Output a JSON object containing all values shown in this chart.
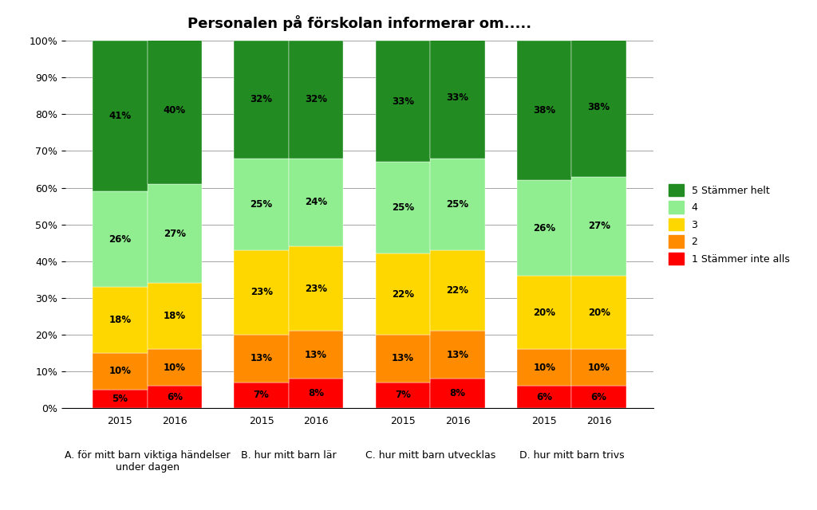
{
  "title": "Personalen på förskolan informerar om.....",
  "categories": [
    [
      "2015",
      "2016"
    ],
    [
      "2015",
      "2016"
    ],
    [
      "2015",
      "2016"
    ],
    [
      "2015",
      "2016"
    ]
  ],
  "group_labels": [
    "A. för mitt barn viktiga händelser\nunder dagen",
    "B. hur mitt barn lär",
    "C. hur mitt barn utvecklas",
    "D. hur mitt barn trivs"
  ],
  "series": {
    "1 Stämmer inte alls": [
      5,
      6,
      7,
      8,
      7,
      8,
      6,
      6
    ],
    "2": [
      10,
      10,
      13,
      13,
      13,
      13,
      10,
      10
    ],
    "3": [
      18,
      18,
      23,
      23,
      22,
      22,
      20,
      20
    ],
    "4": [
      26,
      27,
      25,
      24,
      25,
      25,
      26,
      27
    ],
    "5 Stämmer helt": [
      41,
      40,
      32,
      32,
      33,
      33,
      38,
      38
    ]
  },
  "colors": {
    "1 Stämmer inte alls": "#FF0000",
    "2": "#FF8C00",
    "3": "#FFD700",
    "4": "#90EE90",
    "5 Stämmer helt": "#228B22"
  },
  "legend_order": [
    "5 Stämmer helt",
    "4",
    "3",
    "2",
    "1 Stämmer inte alls"
  ],
  "ylim": [
    0,
    100
  ],
  "yticks": [
    0,
    10,
    20,
    30,
    40,
    50,
    60,
    70,
    80,
    90,
    100
  ],
  "ytick_labels": [
    "0%",
    "10%",
    "20%",
    "30%",
    "40%",
    "50%",
    "60%",
    "70%",
    "80%",
    "90%",
    "100%"
  ],
  "bar_width": 0.85,
  "background_color": "#FFFFFF",
  "title_fontsize": 13,
  "label_fontsize": 8.5,
  "group_label_fontsize": 9
}
